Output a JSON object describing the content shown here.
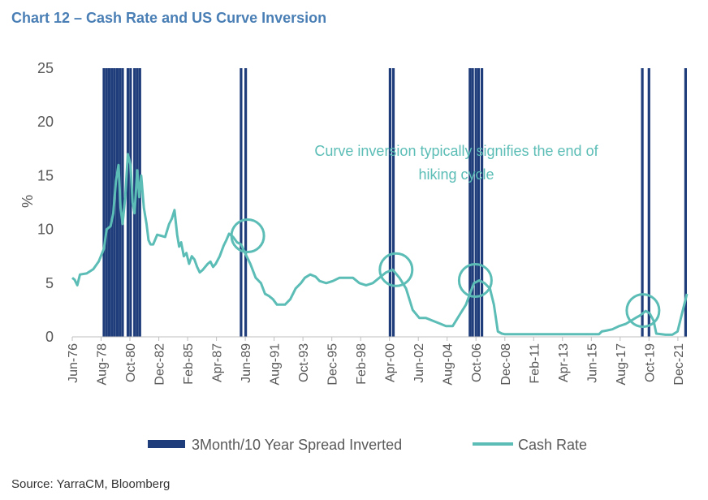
{
  "title": "Chart 12 – Cash Rate and US Curve Inversion",
  "source": "Source: YarraCM, Bloomberg",
  "colors": {
    "title": "#4a7fb5",
    "inversion": "#1f3d7a",
    "cash_rate": "#5bbdb6",
    "axis_text": "#595959"
  },
  "chart_data": {
    "type": "line",
    "ylabel": "%",
    "xlabel": "",
    "ylim": [
      0,
      25
    ],
    "yticks": [
      0,
      5,
      10,
      15,
      20,
      25
    ],
    "xlim": [
      1976.42,
      2022.6
    ],
    "grid": false,
    "legend_position": "bottom",
    "x_tick_labels": [
      "Jun-76",
      "Aug-78",
      "Oct-80",
      "Dec-82",
      "Feb-85",
      "Apr-87",
      "Jun-89",
      "Aug-91",
      "Oct-93",
      "Dec-95",
      "Feb-98",
      "Apr-00",
      "Jun-02",
      "Aug-04",
      "Oct-06",
      "Dec-08",
      "Feb-11",
      "Apr-13",
      "Jun-15",
      "Aug-17",
      "Oct-19",
      "Dec-21"
    ],
    "annotation": "Curve inversion typically signifies the end of hiking cycle",
    "series": [
      {
        "name": "3Month/10 Year Spread Inverted",
        "type": "bar",
        "x": [
          1978.8,
          1979.0,
          1979.2,
          1979.4,
          1979.6,
          1979.8,
          1980.0,
          1980.2,
          1980.6,
          1980.8,
          1981.1,
          1981.3,
          1981.5,
          1989.1,
          1989.45,
          2000.3,
          2000.55,
          2006.3,
          2006.5,
          2006.75,
          2006.95,
          2007.2,
          2019.25,
          2019.75,
          2022.5
        ],
        "value": 25
      },
      {
        "name": "Cash Rate",
        "type": "line",
        "x": [
          1976.42,
          1976.6,
          1976.8,
          1977.0,
          1977.5,
          1978.0,
          1978.4,
          1978.8,
          1979.0,
          1979.3,
          1979.5,
          1979.7,
          1979.9,
          1980.05,
          1980.2,
          1980.4,
          1980.6,
          1980.8,
          1980.95,
          1981.1,
          1981.3,
          1981.45,
          1981.6,
          1981.8,
          1982.0,
          1982.15,
          1982.3,
          1982.5,
          1982.8,
          1983.1,
          1983.4,
          1983.7,
          1983.9,
          1984.1,
          1984.3,
          1984.45,
          1984.6,
          1984.8,
          1985.0,
          1985.2,
          1985.4,
          1985.6,
          1985.8,
          1986.0,
          1986.2,
          1986.4,
          1986.6,
          1986.8,
          1987.0,
          1987.2,
          1987.5,
          1987.8,
          1988.0,
          1988.2,
          1988.5,
          1988.8,
          1989.1,
          1989.4,
          1989.8,
          1990.2,
          1990.6,
          1990.9,
          1991.2,
          1991.5,
          1991.8,
          1992.1,
          1992.4,
          1992.8,
          1993.2,
          1993.6,
          1993.9,
          1994.3,
          1994.7,
          1995.0,
          1995.5,
          1996.0,
          1996.5,
          1997.0,
          1997.5,
          1998.0,
          1998.5,
          1999.0,
          1999.5,
          2000.0,
          2000.5,
          2001.0,
          2001.5,
          2002.0,
          2002.5,
          2003.0,
          2003.5,
          2004.0,
          2004.5,
          2005.0,
          2005.5,
          2006.0,
          2006.3,
          2006.6,
          2007.0,
          2007.4,
          2007.8,
          2008.1,
          2008.4,
          2008.7,
          2008.9,
          2009.0,
          2010.0,
          2012.0,
          2014.0,
          2016.0,
          2016.2,
          2016.6,
          2017.0,
          2017.5,
          2018.0,
          2018.4,
          2018.8,
          2019.1,
          2019.5,
          2019.8,
          2020.1,
          2020.3,
          2021.0,
          2021.5,
          2021.9,
          2022.1,
          2022.3,
          2022.5,
          2022.6
        ],
        "y": [
          5.5,
          5.3,
          4.8,
          5.8,
          5.9,
          6.3,
          7.0,
          8.2,
          10.0,
          10.3,
          11.5,
          14.5,
          16.0,
          12.0,
          10.5,
          13.0,
          17.0,
          16.0,
          12.5,
          11.5,
          15.5,
          13.0,
          15.0,
          12.0,
          10.5,
          9.0,
          8.6,
          8.6,
          9.5,
          9.4,
          9.3,
          10.5,
          11.0,
          11.8,
          9.5,
          8.4,
          8.8,
          7.5,
          7.8,
          6.8,
          7.5,
          7.2,
          6.5,
          6.0,
          6.2,
          6.5,
          6.8,
          7.0,
          6.5,
          6.8,
          7.5,
          8.5,
          9.0,
          9.6,
          9.3,
          8.8,
          8.6,
          7.8,
          6.8,
          5.5,
          5.0,
          4.0,
          3.8,
          3.5,
          3.0,
          3.0,
          3.0,
          3.5,
          4.5,
          5.0,
          5.5,
          5.8,
          5.6,
          5.2,
          5.0,
          5.2,
          5.5,
          5.5,
          5.5,
          5.0,
          4.8,
          5.0,
          5.5,
          6.0,
          6.25,
          5.5,
          4.5,
          2.5,
          1.75,
          1.75,
          1.5,
          1.25,
          1.0,
          1.0,
          2.0,
          3.0,
          4.0,
          5.0,
          5.25,
          5.0,
          4.5,
          3.0,
          0.5,
          0.3,
          0.25,
          0.25,
          0.25,
          0.25,
          0.25,
          0.25,
          0.5,
          0.6,
          0.7,
          1.0,
          1.2,
          1.5,
          1.8,
          2.0,
          2.4,
          2.2,
          1.5,
          0.3,
          0.2,
          0.2,
          0.5,
          1.5,
          2.5,
          3.5,
          4.0
        ]
      }
    ],
    "highlight_circles": [
      {
        "x": 1989.6,
        "y": 9.4
      },
      {
        "x": 2000.75,
        "y": 6.25
      },
      {
        "x": 2006.7,
        "y": 5.25
      },
      {
        "x": 2019.3,
        "y": 2.45
      }
    ]
  }
}
